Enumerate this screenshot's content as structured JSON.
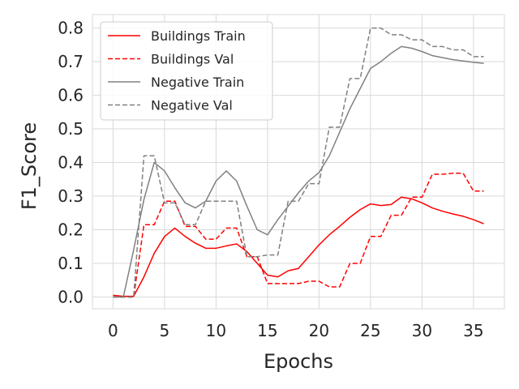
{
  "chart_data": {
    "type": "line",
    "title": "",
    "xlabel": "Epochs",
    "ylabel": "F1_Score",
    "xlim": [
      -2,
      38
    ],
    "ylim": [
      -0.035,
      0.84
    ],
    "xticks": [
      0,
      5,
      10,
      15,
      20,
      25,
      30,
      35
    ],
    "yticks": [
      0.0,
      0.1,
      0.2,
      0.3,
      0.4,
      0.5,
      0.6,
      0.7,
      0.8
    ],
    "ytick_labels": [
      "0.0",
      "0.1",
      "0.2",
      "0.3",
      "0.4",
      "0.5",
      "0.6",
      "0.7",
      "0.8"
    ],
    "grid": true,
    "legend_position": "top-left",
    "x": [
      0,
      1,
      2,
      3,
      4,
      5,
      6,
      7,
      8,
      9,
      10,
      11,
      12,
      13,
      14,
      15,
      16,
      17,
      18,
      19,
      20,
      21,
      22,
      23,
      24,
      25,
      26,
      27,
      28,
      29,
      30,
      31,
      32,
      33,
      34,
      35,
      36
    ],
    "series": [
      {
        "name": "Buildings Train",
        "color": "#ff0000",
        "dash": "solid",
        "values": [
          0.005,
          0.002,
          0.002,
          0.06,
          0.13,
          0.18,
          0.205,
          0.18,
          0.16,
          0.145,
          0.145,
          0.152,
          0.158,
          0.135,
          0.1,
          0.065,
          0.06,
          0.078,
          0.085,
          0.12,
          0.155,
          0.185,
          0.21,
          0.237,
          0.26,
          0.277,
          0.272,
          0.275,
          0.297,
          0.292,
          0.28,
          0.265,
          0.255,
          0.247,
          0.24,
          0.23,
          0.218
        ]
      },
      {
        "name": "Buildings Val",
        "color": "#ff0000",
        "dash": "dashed",
        "values": [
          0.0,
          0.0,
          0.0,
          0.215,
          0.215,
          0.285,
          0.285,
          0.21,
          0.21,
          0.172,
          0.172,
          0.205,
          0.205,
          0.12,
          0.12,
          0.04,
          0.04,
          0.04,
          0.04,
          0.047,
          0.047,
          0.03,
          0.03,
          0.1,
          0.1,
          0.18,
          0.18,
          0.243,
          0.243,
          0.297,
          0.297,
          0.365,
          0.365,
          0.368,
          0.368,
          0.315,
          0.315
        ]
      },
      {
        "name": "Negative Train",
        "color": "#808080",
        "dash": "solid",
        "values": [
          0.0,
          0.0,
          0.14,
          0.29,
          0.4,
          0.375,
          0.325,
          0.28,
          0.265,
          0.285,
          0.345,
          0.375,
          0.345,
          0.27,
          0.2,
          0.185,
          0.23,
          0.27,
          0.31,
          0.345,
          0.37,
          0.42,
          0.49,
          0.56,
          0.62,
          0.68,
          0.7,
          0.725,
          0.745,
          0.74,
          0.73,
          0.718,
          0.712,
          0.706,
          0.702,
          0.698,
          0.695
        ]
      },
      {
        "name": "Negative Val",
        "color": "#808080",
        "dash": "dashed",
        "values": [
          0.0,
          0.0,
          0.0,
          0.42,
          0.42,
          0.28,
          0.28,
          0.215,
          0.215,
          0.285,
          0.285,
          0.285,
          0.285,
          0.12,
          0.12,
          0.125,
          0.125,
          0.285,
          0.285,
          0.337,
          0.337,
          0.505,
          0.505,
          0.65,
          0.65,
          0.8,
          0.8,
          0.78,
          0.78,
          0.765,
          0.765,
          0.745,
          0.745,
          0.735,
          0.735,
          0.715,
          0.715
        ]
      }
    ]
  }
}
